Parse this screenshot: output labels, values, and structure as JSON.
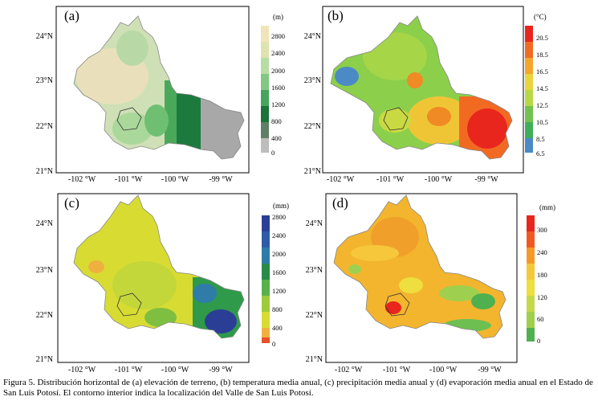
{
  "panels": [
    {
      "label": "(a)",
      "unit": "(m)",
      "colorbar": [
        "2800",
        "2400",
        "2000",
        "1600",
        "1200",
        "800",
        "400",
        "0"
      ],
      "lat": [
        "24°N",
        "23°N",
        "22°N",
        "21°N"
      ],
      "lon": [
        "-102 °W",
        "-101 °W",
        "-100 °W",
        "-99 °W"
      ]
    },
    {
      "label": "(b)",
      "unit": "(°C)",
      "colorbar": [
        "20.5",
        "18.5",
        "16.5",
        "14.5",
        "12.5",
        "10.5",
        "8.5",
        "6.5"
      ],
      "lat": [
        "24°N",
        "23°N",
        "22°N",
        "21°N"
      ],
      "lon": [
        "-102 °W",
        "-101 °W",
        "-100 °W",
        "-99 °W"
      ]
    },
    {
      "label": "(c)",
      "unit": "(mm)",
      "colorbar": [
        "2800",
        "2400",
        "2000",
        "1600",
        "1200",
        "800",
        "400",
        "0"
      ],
      "lat": [
        "24°N",
        "23°N",
        "22°N",
        "21°N"
      ],
      "lon": [
        "-102 °W",
        "-101 °W",
        "-100 °W",
        "-99 °W"
      ]
    },
    {
      "label": "(d)",
      "unit": "(mm)",
      "colorbar": [
        "300",
        "240",
        "180",
        "120",
        "60",
        "0"
      ],
      "lat": [
        "24°N",
        "23°N",
        "22°N",
        "21°N"
      ],
      "lon": [
        "-102 °W",
        "-101 °W",
        "-100 °W",
        "-99 °W"
      ]
    }
  ],
  "caption": "Figura 5. Distribución horizontal de (a) elevación de terreno, (b) temperatura media anual, (c) precipitación media anual y (d) evaporación media anual en el Estado de San Luis Potosí. El contorno interior indica la localización del Valle de San Luis Potosí.",
  "colors": {
    "elev": [
      "#f1e4b8",
      "#cfe0b6",
      "#9fd39b",
      "#5db86a",
      "#2a8a47",
      "#0d5a2c",
      "#9a9a9a",
      "#c0c0c0"
    ],
    "temp": [
      "#e8261e",
      "#f06a22",
      "#f5a62a",
      "#e9d43b",
      "#b7d944",
      "#72c24f",
      "#3fae5b",
      "#4c8ac6"
    ],
    "precip": [
      "#2b3e96",
      "#2f5aa8",
      "#2f7ca8",
      "#2a8a4a",
      "#5ab04a",
      "#9ccb3b",
      "#d8dc32",
      "#f0b040",
      "#e8502a"
    ],
    "evap": [
      "#e8261e",
      "#f05a22",
      "#f59a2a",
      "#f6c73a",
      "#eede3f",
      "#9fcf4e",
      "#4fb04f",
      "#2f9a47"
    ]
  }
}
